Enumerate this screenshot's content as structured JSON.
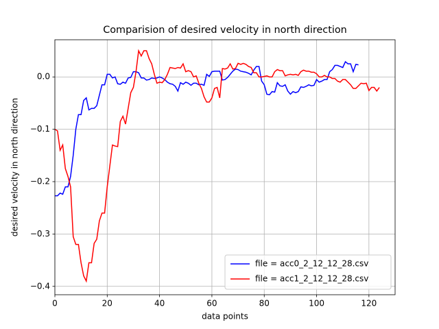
{
  "chart_data": {
    "type": "line",
    "title": "Comparision of desired velocity in north direction",
    "x_label": "data points",
    "y_label": "desired velocity in north direction",
    "xlim": [
      0,
      130
    ],
    "ylim": [
      -0.416,
      0.071
    ],
    "xticks": [
      0,
      20,
      40,
      60,
      80,
      100,
      120
    ],
    "yticks": [
      {
        "value": -0.4,
        "label": "−0.4"
      },
      {
        "value": -0.3,
        "label": "−0.3"
      },
      {
        "value": -0.2,
        "label": "−0.2"
      },
      {
        "value": -0.1,
        "label": "−0.1"
      },
      {
        "value": 0,
        "label": "0.0"
      }
    ],
    "grid": true,
    "legend": "lower right",
    "series": [
      {
        "name": "file = acc0_2_12_12_28.csv",
        "color": "#0000ff",
        "values": [
          -0.227,
          -0.227,
          -0.222,
          -0.224,
          -0.21,
          -0.21,
          -0.19,
          -0.15,
          -0.1,
          -0.072,
          -0.072,
          -0.045,
          -0.04,
          -0.063,
          -0.06,
          -0.06,
          -0.055,
          -0.035,
          -0.015,
          -0.015,
          0.005,
          0.005,
          -0.002,
          0,
          -0.013,
          -0.014,
          -0.01,
          -0.012,
          -0.002,
          -0.001,
          0.01,
          0.01,
          0.008,
          -0.002,
          -0.002,
          -0.006,
          -0.005,
          -0.002,
          -0.003,
          -0.002,
          0,
          -0.002,
          -0.005,
          -0.01,
          -0.013,
          -0.014,
          -0.018,
          -0.027,
          -0.011,
          -0.014,
          -0.01,
          -0.012,
          -0.016,
          -0.012,
          -0.012,
          -0.015,
          -0.014,
          -0.016,
          0.005,
          0.001,
          0.01,
          0.011,
          0.011,
          0.011,
          -0.006,
          -0.005,
          -0.001,
          0.005,
          0.011,
          0.015,
          0.014,
          0.011,
          0.01,
          0.009,
          0.007,
          0.004,
          0.013,
          0.02,
          0.02,
          -0.008,
          -0.015,
          -0.033,
          -0.034,
          -0.028,
          -0.029,
          -0.011,
          -0.017,
          -0.018,
          -0.015,
          -0.027,
          -0.033,
          -0.028,
          -0.03,
          -0.028,
          -0.019,
          -0.02,
          -0.018,
          -0.015,
          -0.017,
          -0.016,
          -0.005,
          -0.01,
          -0.008,
          -0.005,
          -0.005,
          0.01,
          0.014,
          0.022,
          0.022,
          0.02,
          0.018,
          0.029,
          0.025,
          0.025,
          0.01,
          0.024,
          0.023
        ]
      },
      {
        "name": "file = acc1_2_12_12_28.csv",
        "color": "#ff0000",
        "values": [
          -0.1,
          -0.103,
          -0.14,
          -0.13,
          -0.175,
          -0.19,
          -0.21,
          -0.305,
          -0.32,
          -0.32,
          -0.355,
          -0.38,
          -0.39,
          -0.355,
          -0.355,
          -0.318,
          -0.31,
          -0.275,
          -0.26,
          -0.26,
          -0.21,
          -0.17,
          -0.13,
          -0.132,
          -0.133,
          -0.085,
          -0.075,
          -0.09,
          -0.06,
          -0.03,
          -0.02,
          0.01,
          0.05,
          0.04,
          0.05,
          0.05,
          0.035,
          0.025,
          0.005,
          -0.012,
          -0.01,
          -0.011,
          -0.005,
          0.005,
          0.018,
          0.017,
          0.016,
          0.018,
          0.017,
          0.025,
          0.01,
          0.012,
          0.01,
          0,
          0.002,
          -0.012,
          -0.022,
          -0.038,
          -0.048,
          -0.048,
          -0.04,
          -0.022,
          -0.02,
          -0.04,
          0.016,
          0.015,
          0.017,
          0.025,
          0.015,
          0.016,
          0.026,
          0.024,
          0.026,
          0.024,
          0.02,
          0.018,
          0.008,
          0.008,
          0,
          0,
          0.001,
          0.002,
          0,
          0,
          0.01,
          0.014,
          0.012,
          0.012,
          0.002,
          0.004,
          0.005,
          0.004,
          0.005,
          0.003,
          0.01,
          0.013,
          0.011,
          0.011,
          0.009,
          0.009,
          0.006,
          0,
          0,
          0.003,
          0,
          0,
          -0.003,
          -0.003,
          -0.008,
          -0.01,
          -0.005,
          -0.005,
          -0.01,
          -0.015,
          -0.022,
          -0.022,
          -0.017,
          -0.012,
          -0.013,
          -0.012,
          -0.026,
          -0.02,
          -0.02,
          -0.027,
          -0.02
        ]
      }
    ]
  }
}
